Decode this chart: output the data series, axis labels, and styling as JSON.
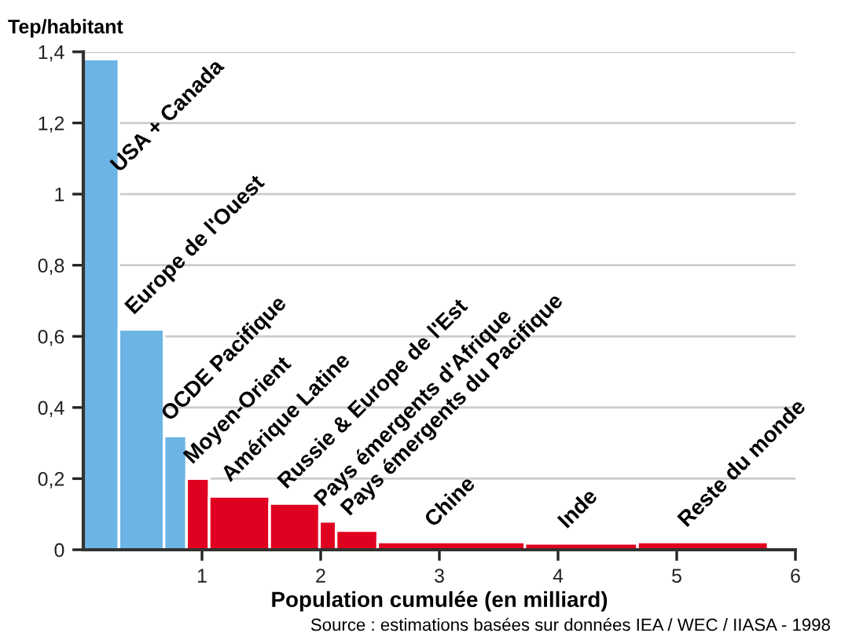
{
  "chart_data": {
    "type": "histogram",
    "ylabel": "Tep/habitant",
    "xlabel": "Population cumulée (en milliard)",
    "bins": [
      0,
      0.3,
      0.68,
      0.87,
      1.06,
      1.57,
      1.99,
      2.13,
      2.48,
      3.72,
      4.67,
      5.77
    ],
    "values": [
      1.38,
      0.62,
      0.32,
      0.2,
      0.15,
      0.13,
      0.08,
      0.054,
      0.022,
      0.018,
      0.022
    ],
    "colors": [
      "#6cb4e4",
      "#6cb4e4",
      "#6cb4e4",
      "#e0001f",
      "#e0001f",
      "#e0001f",
      "#e0001f",
      "#e0001f",
      "#e0001f",
      "#e0001f",
      "#e0001f"
    ],
    "xlim": [
      0,
      6
    ],
    "ylim": [
      0,
      1.4
    ],
    "xticks": [
      1,
      2,
      3,
      4,
      5,
      6
    ],
    "yticks": [
      0,
      {
        "value": 0.2,
        "label": "0,2"
      },
      {
        "value": 0.4,
        "label": "0,4"
      },
      {
        "value": 0.6,
        "label": "0,6"
      },
      {
        "value": 0.8,
        "label": "0,8"
      },
      1,
      {
        "value": 1.2,
        "label": "1,2"
      },
      {
        "value": 1.4,
        "label": "1,4"
      }
    ],
    "grid": "y",
    "annotations": [
      {
        "text": "USA + Canada",
        "x": 0.15,
        "y": 1.38
      },
      {
        "text": "Europe de l'Ouest",
        "x": 0.49,
        "y": 0.62
      },
      {
        "text": "OCDE Pacifique",
        "x": 0.775,
        "y": 0.32
      },
      {
        "text": "Moyen-Orient",
        "x": 0.965,
        "y": 0.2
      },
      {
        "text": "Amérique Latine",
        "x": 1.315,
        "y": 0.15
      },
      {
        "text": "Russie & Europe de l'Est",
        "x": 1.78,
        "y": 0.13
      },
      {
        "text": "Pays émergents d'Afrique",
        "x": 2.06,
        "y": 0.08
      },
      {
        "text": "Pays émergents du Pacifique",
        "x": 2.305,
        "y": 0.054
      },
      {
        "text": "Chine",
        "x": 3.1,
        "y": 0.022
      },
      {
        "text": "Inde",
        "x": 4.195,
        "y": 0.018
      },
      {
        "text": "Reste du monde",
        "x": 5.22,
        "y": 0.022
      },
      "Source : estimations basées sur données IEA / WEC / IIASA - 1998"
    ]
  }
}
